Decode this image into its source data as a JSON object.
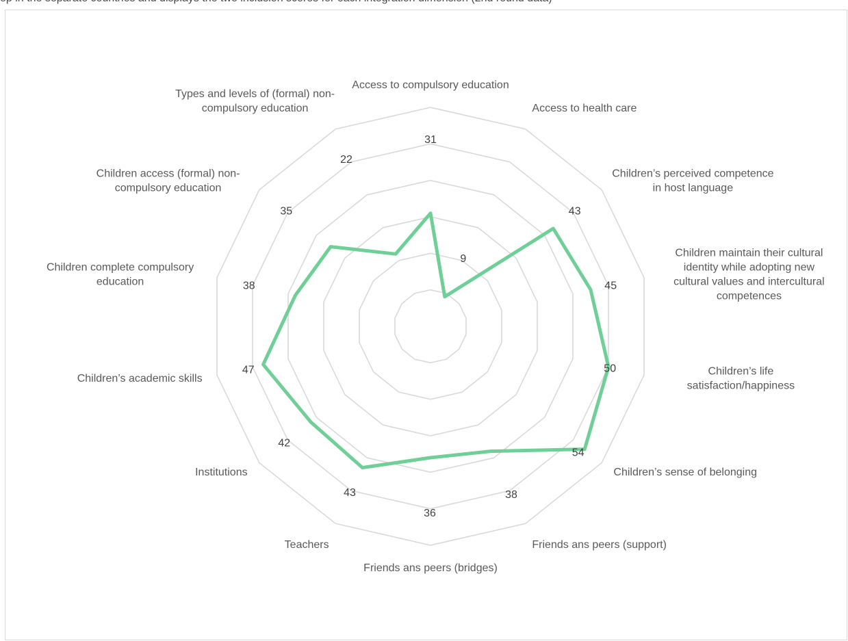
{
  "header": {
    "clipped_caption": "ep in the separate countries and displays the two inclusion scores for each integration dimension (2nd round data)"
  },
  "chart_data": {
    "type": "radar",
    "grid": true,
    "rlim": [
      0,
      60
    ],
    "rings": 6,
    "categories": [
      "Access to compulsory education",
      "Access to health care",
      "Children's perceived competence in host language",
      "Children maintain their cultural identity while adopting new cultural values and intercultural competences",
      "Children's life satisfaction/happiness",
      "Children's sense of belonging",
      "Friends ans peers (support)",
      "Friends ans peers (bridges)",
      "Teachers",
      "Institutions",
      "Children's academic skills",
      "Children complete compulsory education",
      "Children access (formal) non-compulsory education",
      "Types and levels of (formal) non-compulsory education"
    ],
    "category_lines": [
      [
        "Access to compulsory education"
      ],
      [
        "Access to health care"
      ],
      [
        "Children’s perceived competence",
        "in host language"
      ],
      [
        "Children maintain their cultural",
        "identity while adopting new",
        "cultural values and intercultural",
        "competences"
      ],
      [
        "Children’s life",
        "satisfaction/happiness"
      ],
      [
        "Children’s sense of belonging"
      ],
      [
        "Friends ans peers (support)"
      ],
      [
        "Friends ans peers (bridges)"
      ],
      [
        "Teachers"
      ],
      [
        "Institutions"
      ],
      [
        "Children’s academic skills"
      ],
      [
        "Children complete compulsory",
        "education"
      ],
      [
        "Children access (formal) non-",
        "compulsory education"
      ],
      [
        "Types and levels of (formal) non-",
        "compulsory education"
      ]
    ],
    "series": [
      {
        "values": [
          31,
          9,
          43,
          45,
          50,
          54,
          38,
          36,
          43,
          42,
          47,
          38,
          35,
          22
        ],
        "color": "#6fcf97"
      }
    ],
    "value_labels": [
      "31",
      "9",
      "43",
      "45",
      "50",
      "54",
      "38",
      "36",
      "43",
      "42",
      "47",
      "38",
      "35",
      "22"
    ],
    "grid_color": "#d9d9d9"
  }
}
